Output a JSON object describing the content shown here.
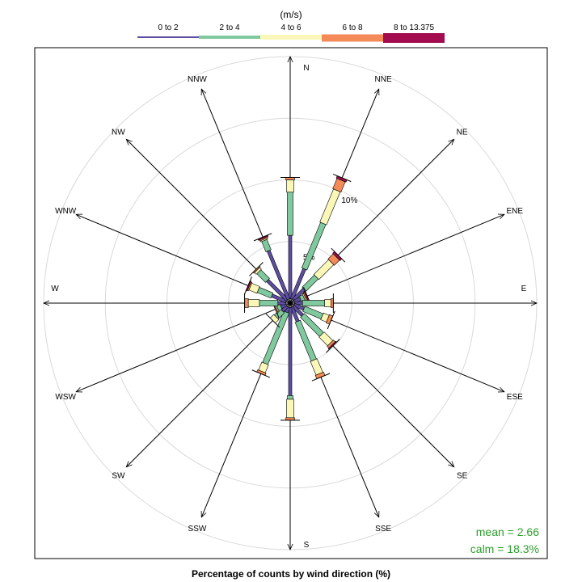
{
  "chart_data": {
    "type": "wind-rose",
    "units_label": "(m/s)",
    "xlabel": "Percentage of counts by wind direction (%)",
    "legend": [
      {
        "label": "0 to 2",
        "color": "#5E4FA2"
      },
      {
        "label": "2 to 4",
        "color": "#80C99E"
      },
      {
        "label": "4 to 6",
        "color": "#FBF7B8"
      },
      {
        "label": "6 to 8",
        "color": "#F48A57"
      },
      {
        "label": "8 to 13.375",
        "color": "#A30C4F"
      }
    ],
    "rings": [
      {
        "value": 5,
        "label": "5%"
      },
      {
        "value": 10,
        "label": "10%"
      },
      {
        "value": 15,
        "label": ""
      },
      {
        "value": 20,
        "label": ""
      }
    ],
    "axis_max": 20,
    "directions": [
      {
        "label": "N",
        "deg": 0,
        "cum": [
          5.5,
          9.0,
          10.0,
          10.2,
          10.2
        ]
      },
      {
        "label": "NNE",
        "deg": 22.5,
        "cum": [
          3.0,
          7.0,
          9.9,
          10.8,
          11.0
        ]
      },
      {
        "label": "NE",
        "deg": 45,
        "cum": [
          1.6,
          3.0,
          4.7,
          5.3,
          5.5
        ]
      },
      {
        "label": "ENE",
        "deg": 67.5,
        "cum": [
          0.9,
          1.2,
          1.3,
          1.4,
          1.5
        ]
      },
      {
        "label": "E",
        "deg": 90,
        "cum": [
          1.0,
          2.8,
          3.3,
          3.5,
          3.5
        ]
      },
      {
        "label": "ESE",
        "deg": 112.5,
        "cum": [
          1.2,
          2.8,
          3.3,
          3.6,
          3.6
        ]
      },
      {
        "label": "SE",
        "deg": 135,
        "cum": [
          1.4,
          3.6,
          4.6,
          4.8,
          4.9
        ]
      },
      {
        "label": "SSE",
        "deg": 157.5,
        "cum": [
          1.6,
          5.0,
          6.2,
          6.5,
          6.5
        ]
      },
      {
        "label": "S",
        "deg": 180,
        "cum": [
          7.5,
          7.8,
          9.3,
          9.5,
          9.5
        ]
      },
      {
        "label": "SSW",
        "deg": 202.5,
        "cum": [
          0.8,
          5.3,
          6.0,
          6.2,
          6.2
        ]
      },
      {
        "label": "SW",
        "deg": 225,
        "cum": [
          0.9,
          1.6,
          2.0,
          2.0,
          2.0
        ]
      },
      {
        "label": "WSW",
        "deg": 247.5,
        "cum": [
          0.8,
          1.1,
          1.2,
          1.3,
          1.3
        ]
      },
      {
        "label": "W",
        "deg": 270,
        "cum": [
          1.0,
          2.5,
          3.4,
          3.7,
          3.7
        ]
      },
      {
        "label": "WNW",
        "deg": 292.5,
        "cum": [
          1.6,
          2.8,
          3.5,
          3.6,
          3.7
        ]
      },
      {
        "label": "NW",
        "deg": 315,
        "cum": [
          2.6,
          3.6,
          3.8,
          3.9,
          3.9
        ]
      },
      {
        "label": "NNW",
        "deg": 337.5,
        "cum": [
          4.6,
          5.5,
          5.6,
          5.7,
          5.8
        ]
      }
    ],
    "stats": {
      "mean": "mean = 2.66",
      "calm": "calm = 18.3%"
    }
  }
}
